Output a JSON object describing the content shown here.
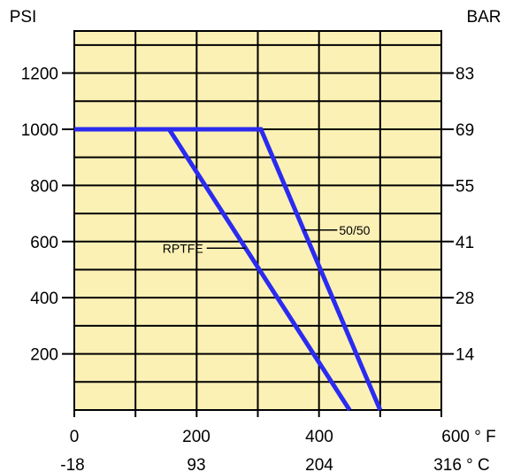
{
  "chart_data": {
    "type": "line",
    "left_axis_label": "PSI",
    "right_axis_label": "BAR",
    "xlim": [
      0,
      600
    ],
    "ylim": [
      0,
      1350
    ],
    "x_ticks_f": [
      "0",
      "200",
      "400",
      "600 ° F"
    ],
    "x_ticks_c": [
      "-18",
      "93",
      "204",
      "316 ° C"
    ],
    "y_ticks_psi": [
      {
        "v": 200,
        "label": "200"
      },
      {
        "v": 400,
        "label": "400"
      },
      {
        "v": 600,
        "label": "600"
      },
      {
        "v": 800,
        "label": "800"
      },
      {
        "v": 1000,
        "label": "1000"
      },
      {
        "v": 1200,
        "label": "1200"
      }
    ],
    "y_ticks_bar": [
      {
        "v": 200,
        "label": "14"
      },
      {
        "v": 400,
        "label": "28"
      },
      {
        "v": 600,
        "label": "41"
      },
      {
        "v": 800,
        "label": "55"
      },
      {
        "v": 1000,
        "label": "69"
      },
      {
        "v": 1200,
        "label": "83"
      }
    ],
    "grid": true,
    "series": [
      {
        "name": "RPTFE",
        "points": [
          [
            0,
            1000
          ],
          [
            155,
            1000
          ],
          [
            450,
            0
          ]
        ]
      },
      {
        "name": "50/50",
        "points": [
          [
            0,
            1000
          ],
          [
            305,
            1000
          ],
          [
            500,
            0
          ]
        ]
      }
    ],
    "annotations": [
      {
        "text": "RPTFE",
        "series": "RPTFE",
        "at_x": 280
      },
      {
        "text": "50/50",
        "series": "50/50",
        "at_x": 375
      }
    ],
    "colors": {
      "plot_bg": "#fbf1b5",
      "series": "#2b2bf0",
      "grid": "#000000"
    }
  }
}
